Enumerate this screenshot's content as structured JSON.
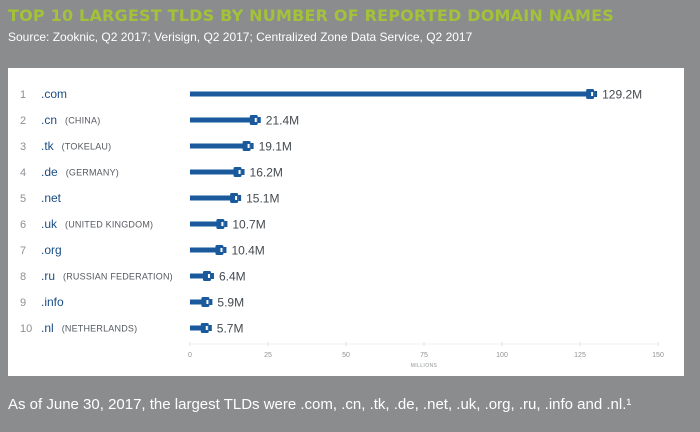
{
  "title": "TOP 10 LARGEST TLDS BY NUMBER OF REPORTED DOMAIN NAMES",
  "subtitle": "Source: Zooknic, Q2 2017; Verisign, Q2 2017; Centralized Zone Data Service, Q2 2017",
  "footnote": "As of June 30, 2017, the largest TLDs were .com, .cn, .tk, .de, .net, .uk, .org, .ru, .info and .nl.¹",
  "colors": {
    "bar": "#1a5a9c",
    "title": "#a3c23a",
    "background": "#8a8c8e"
  },
  "chart_data": {
    "type": "bar",
    "orientation": "horizontal",
    "xlabel": "MILLIONS",
    "xlim": [
      0,
      150
    ],
    "xticks": [
      0,
      25,
      50,
      75,
      100,
      125,
      150
    ],
    "rows": [
      {
        "rank": "1",
        "tld": ".com",
        "country": "",
        "value": 129.2,
        "label": "129.2M"
      },
      {
        "rank": "2",
        "tld": ".cn",
        "country": "(CHINA)",
        "value": 21.4,
        "label": "21.4M"
      },
      {
        "rank": "3",
        "tld": ".tk",
        "country": "(TOKELAU)",
        "value": 19.1,
        "label": "19.1M"
      },
      {
        "rank": "4",
        "tld": ".de",
        "country": "(GERMANY)",
        "value": 16.2,
        "label": "16.2M"
      },
      {
        "rank": "5",
        "tld": ".net",
        "country": "",
        "value": 15.1,
        "label": "15.1M"
      },
      {
        "rank": "6",
        "tld": ".uk",
        "country": "(UNITED KINGDOM)",
        "value": 10.7,
        "label": "10.7M"
      },
      {
        "rank": "7",
        "tld": ".org",
        "country": "",
        "value": 10.4,
        "label": "10.4M"
      },
      {
        "rank": "8",
        "tld": ".ru",
        "country": "(RUSSIAN FEDERATION)",
        "value": 6.4,
        "label": "6.4M"
      },
      {
        "rank": "9",
        "tld": ".info",
        "country": "",
        "value": 5.9,
        "label": "5.9M"
      },
      {
        "rank": "10",
        "tld": ".nl",
        "country": "(NETHERLANDS)",
        "value": 5.7,
        "label": "5.7M"
      }
    ]
  }
}
